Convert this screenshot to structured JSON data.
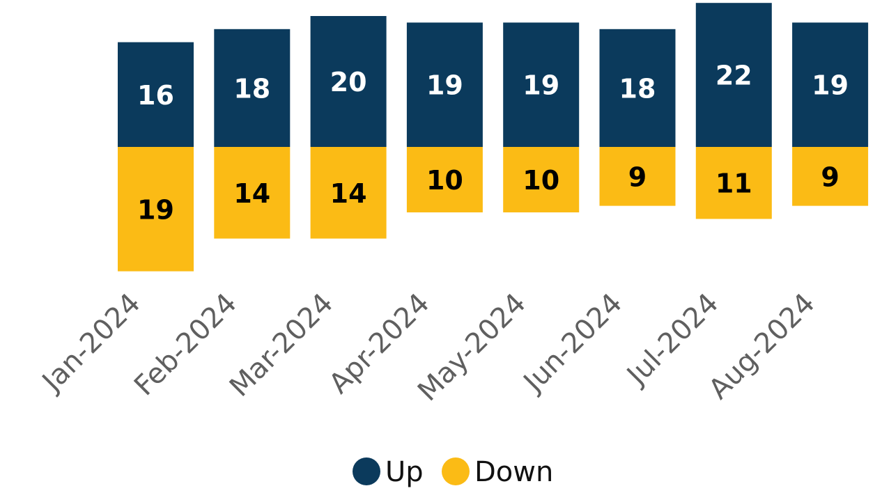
{
  "chart_data": {
    "type": "bar",
    "stacked": "diverging",
    "categories": [
      "Jan-2024",
      "Feb-2024",
      "Mar-2024",
      "Apr-2024",
      "May-2024",
      "Jun-2024",
      "Jul-2024",
      "Aug-2024"
    ],
    "series": [
      {
        "name": "Up",
        "color": "#0b3a5c",
        "label_color": "#ffffff",
        "values": [
          16,
          18,
          20,
          19,
          19,
          18,
          22,
          19
        ]
      },
      {
        "name": "Down",
        "color": "#fbbb15",
        "label_color": "#000000",
        "values": [
          19,
          14,
          14,
          10,
          10,
          9,
          11,
          9
        ]
      }
    ],
    "data_labels": true,
    "legend": "bottom",
    "grid": false,
    "axis_visible": false,
    "tick_label_rotation": "-45"
  }
}
